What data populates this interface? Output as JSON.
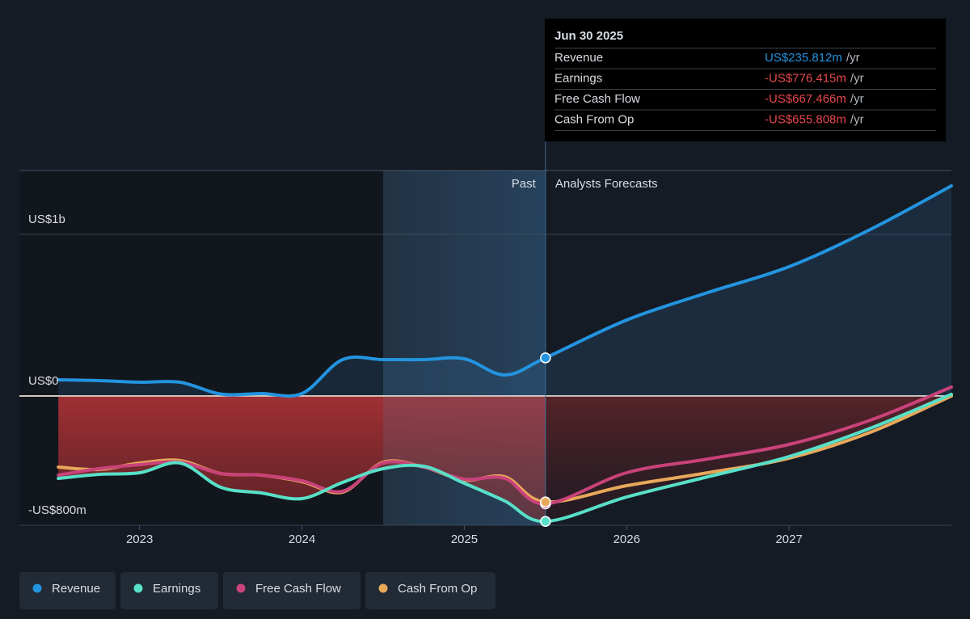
{
  "chart_data": {
    "type": "line",
    "x": [
      2022.5,
      2022.75,
      2023,
      2023.25,
      2023.5,
      2023.75,
      2024,
      2024.25,
      2024.5,
      2024.75,
      2025,
      2025.25,
      2025.5,
      2026,
      2026.5,
      2027,
      2027.5,
      2028
    ],
    "series": [
      {
        "name": "Revenue",
        "color": "#2394df",
        "values": [
          100,
          95,
          85,
          85,
          12,
          15,
          15,
          225,
          225,
          225,
          230,
          130,
          235.812,
          470,
          640,
          800,
          1030,
          1300
        ]
      },
      {
        "name": "Earnings",
        "color": "#58e0c8",
        "values": [
          -510,
          -485,
          -475,
          -415,
          -565,
          -600,
          -635,
          -535,
          -450,
          -435,
          -540,
          -650,
          -776.415,
          -625,
          -500,
          -375,
          -200,
          10
        ]
      },
      {
        "name": "Free Cash Flow",
        "color": "#c9427a",
        "values": [
          -490,
          -450,
          -425,
          -410,
          -480,
          -490,
          -525,
          -590,
          -415,
          -440,
          -515,
          -510,
          -667.466,
          -475,
          -390,
          -300,
          -150,
          55
        ]
      },
      {
        "name": "Cash From Op",
        "color": "#e8a85a",
        "values": [
          -440,
          -455,
          -415,
          -400,
          -480,
          -490,
          -530,
          -595,
          -410,
          -440,
          -520,
          -500,
          -655.808,
          -555,
          -475,
          -385,
          -225,
          0
        ]
      }
    ],
    "xlim": [
      2022.26,
      2028
    ],
    "xticks": [
      2023,
      2024,
      2025,
      2026,
      2027
    ],
    "ylim": [
      -800,
      1395
    ],
    "yticks": [
      {
        "value": 1000,
        "label": "US$1b"
      },
      {
        "value": 0,
        "label": "US$0"
      },
      {
        "value": -800,
        "label": "-US$800m"
      }
    ],
    "grid": true,
    "past_window_start": 2024.5,
    "forecast_start": 2025.5,
    "past_label": "Past",
    "forecast_label": "Analysts Forecasts",
    "tooltip": {
      "title": "Jun 30 2025",
      "rows": [
        {
          "label": "Revenue",
          "value": "US$235.812m",
          "unit": "/yr",
          "color": "#2394df"
        },
        {
          "label": "Earnings",
          "value": "-US$776.415m",
          "unit": "/yr",
          "color": "#e5484d"
        },
        {
          "label": "Free Cash Flow",
          "value": "-US$667.466m",
          "unit": "/yr",
          "color": "#e5484d"
        },
        {
          "label": "Cash From Op",
          "value": "-US$655.808m",
          "unit": "/yr",
          "color": "#e5484d"
        }
      ]
    }
  }
}
